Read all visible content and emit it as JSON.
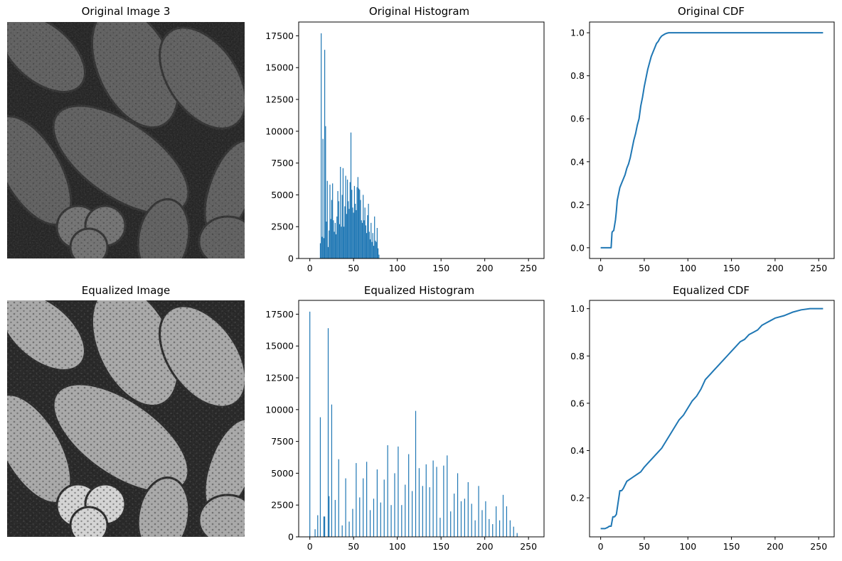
{
  "figure": {
    "panels": [
      {
        "title": "Original Image 3"
      },
      {
        "title": "Original Histogram"
      },
      {
        "title": "Original CDF"
      },
      {
        "title": "Equalized Image"
      },
      {
        "title": "Equalized Histogram"
      },
      {
        "title": "Equalized CDF"
      }
    ]
  },
  "colors": {
    "series": "#1f77b4",
    "axes": "#000000",
    "background": "#ffffff"
  },
  "chart_data": [
    {
      "type": "image",
      "title": "Original Image 3",
      "description_text": "",
      "tone": "dark"
    },
    {
      "type": "bar",
      "title": "Original Histogram",
      "x": [
        12,
        13,
        14,
        15,
        16,
        17,
        18,
        19,
        20,
        21,
        22,
        23,
        24,
        25,
        26,
        27,
        28,
        29,
        30,
        31,
        32,
        33,
        34,
        35,
        36,
        37,
        38,
        39,
        40,
        41,
        42,
        43,
        44,
        45,
        46,
        47,
        48,
        49,
        50,
        51,
        52,
        53,
        54,
        55,
        56,
        57,
        58,
        59,
        60,
        61,
        62,
        63,
        64,
        65,
        66,
        67,
        68,
        69,
        70,
        71,
        72,
        73,
        74,
        75,
        76,
        77,
        78,
        79
      ],
      "values": [
        1200,
        17700,
        1700,
        9400,
        1600,
        16400,
        10400,
        2900,
        6100,
        900,
        2200,
        5800,
        3100,
        4600,
        5900,
        3000,
        2100,
        2800,
        1900,
        3300,
        5300,
        4500,
        2700,
        7200,
        2500,
        5000,
        7100,
        2500,
        4100,
        6500,
        3500,
        6200,
        4500,
        3900,
        6000,
        9900,
        5400,
        4000,
        3600,
        5700,
        4300,
        3800,
        5600,
        6400,
        5500,
        5400,
        4600,
        3000,
        2800,
        5000,
        3000,
        4000,
        2600,
        2000,
        3400,
        4300,
        2100,
        1500,
        2800,
        1300,
        2000,
        1000,
        3300,
        1400,
        1300,
        2400,
        800,
        300
      ],
      "xlim": [
        -12.75,
        267.75
      ],
      "ylim": [
        0,
        18585
      ],
      "xticks": [
        0,
        50,
        100,
        150,
        200,
        250
      ],
      "yticks": [
        0,
        2500,
        5000,
        7500,
        10000,
        12500,
        15000,
        17500
      ]
    },
    {
      "type": "line",
      "title": "Original CDF",
      "x": [
        0,
        12,
        13,
        13.5,
        15,
        17,
        18,
        19,
        20,
        21,
        22,
        24,
        26,
        28,
        30,
        32,
        34,
        36,
        38,
        40,
        42,
        44,
        46,
        48,
        50,
        52,
        54,
        56,
        58,
        60,
        62,
        64,
        66,
        68,
        70,
        72,
        74,
        76,
        78,
        80,
        255
      ],
      "y": [
        0,
        0,
        0.07,
        0.075,
        0.08,
        0.13,
        0.17,
        0.22,
        0.24,
        0.26,
        0.28,
        0.3,
        0.32,
        0.34,
        0.37,
        0.39,
        0.42,
        0.46,
        0.5,
        0.53,
        0.57,
        0.6,
        0.66,
        0.7,
        0.75,
        0.79,
        0.83,
        0.86,
        0.89,
        0.91,
        0.93,
        0.95,
        0.96,
        0.975,
        0.985,
        0.99,
        0.995,
        0.998,
        1.0,
        1.0,
        1.0
      ],
      "xlim": [
        -12.75,
        267.75
      ],
      "ylim": [
        -0.05,
        1.05
      ],
      "xticks": [
        0,
        50,
        100,
        150,
        200,
        250
      ],
      "yticks": [
        0.0,
        0.2,
        0.4,
        0.6,
        0.8,
        1.0
      ]
    },
    {
      "type": "image",
      "title": "Equalized Image",
      "description_text": "",
      "tone": "bright"
    },
    {
      "type": "bar",
      "title": "Equalized Histogram",
      "x": [
        0,
        6,
        9,
        12,
        16,
        17,
        21,
        22,
        25,
        29,
        33,
        37,
        41,
        45,
        49,
        53,
        57,
        61,
        65,
        69,
        73,
        77,
        81,
        85,
        89,
        93,
        97,
        101,
        105,
        109,
        113,
        117,
        121,
        125,
        129,
        133,
        137,
        141,
        145,
        149,
        153,
        157,
        161,
        165,
        169,
        173,
        177,
        181,
        185,
        189,
        193,
        197,
        201,
        205,
        209,
        213,
        217,
        221,
        225,
        229,
        233,
        237
      ],
      "values": [
        17700,
        600,
        1700,
        9400,
        1600,
        1600,
        16400,
        3200,
        10400,
        2900,
        6100,
        900,
        4600,
        1200,
        2200,
        5800,
        3100,
        4600,
        5900,
        2100,
        3000,
        5300,
        2700,
        4500,
        7200,
        2500,
        5000,
        7100,
        2500,
        4100,
        6500,
        3600,
        9900,
        5400,
        4000,
        5700,
        3900,
        6000,
        5500,
        1500,
        5600,
        6400,
        2000,
        3400,
        5000,
        2800,
        3000,
        4300,
        2600,
        1300,
        4000,
        2100,
        2800,
        1400,
        1000,
        2400,
        1300,
        3300,
        2400,
        1300,
        800,
        300
      ],
      "xlim": [
        -12.75,
        267.75
      ],
      "ylim": [
        0,
        18585
      ],
      "xticks": [
        0,
        50,
        100,
        150,
        200,
        250
      ],
      "yticks": [
        0,
        2500,
        5000,
        7500,
        10000,
        12500,
        15000,
        17500
      ]
    },
    {
      "type": "line",
      "title": "Equalized CDF",
      "x": [
        0,
        5,
        8,
        10,
        12,
        14,
        16,
        18,
        20,
        22,
        24,
        26,
        30,
        34,
        38,
        42,
        46,
        50,
        55,
        60,
        65,
        70,
        75,
        80,
        85,
        90,
        95,
        100,
        105,
        110,
        115,
        120,
        125,
        130,
        135,
        140,
        145,
        150,
        155,
        160,
        165,
        170,
        175,
        180,
        185,
        190,
        195,
        200,
        210,
        220,
        230,
        240,
        255
      ],
      "y": [
        0.07,
        0.07,
        0.075,
        0.08,
        0.08,
        0.12,
        0.12,
        0.13,
        0.18,
        0.23,
        0.23,
        0.24,
        0.27,
        0.28,
        0.29,
        0.3,
        0.31,
        0.33,
        0.35,
        0.37,
        0.39,
        0.41,
        0.44,
        0.47,
        0.5,
        0.53,
        0.55,
        0.58,
        0.61,
        0.63,
        0.66,
        0.7,
        0.72,
        0.74,
        0.76,
        0.78,
        0.8,
        0.82,
        0.84,
        0.86,
        0.87,
        0.89,
        0.9,
        0.91,
        0.93,
        0.94,
        0.95,
        0.96,
        0.97,
        0.985,
        0.995,
        1.0,
        1.0
      ],
      "xlim": [
        -12.75,
        267.75
      ],
      "ylim": [
        0.035,
        1.035
      ],
      "xticks": [
        0,
        50,
        100,
        150,
        200,
        250
      ],
      "yticks": [
        0.2,
        0.4,
        0.6,
        0.8,
        1.0
      ]
    }
  ]
}
